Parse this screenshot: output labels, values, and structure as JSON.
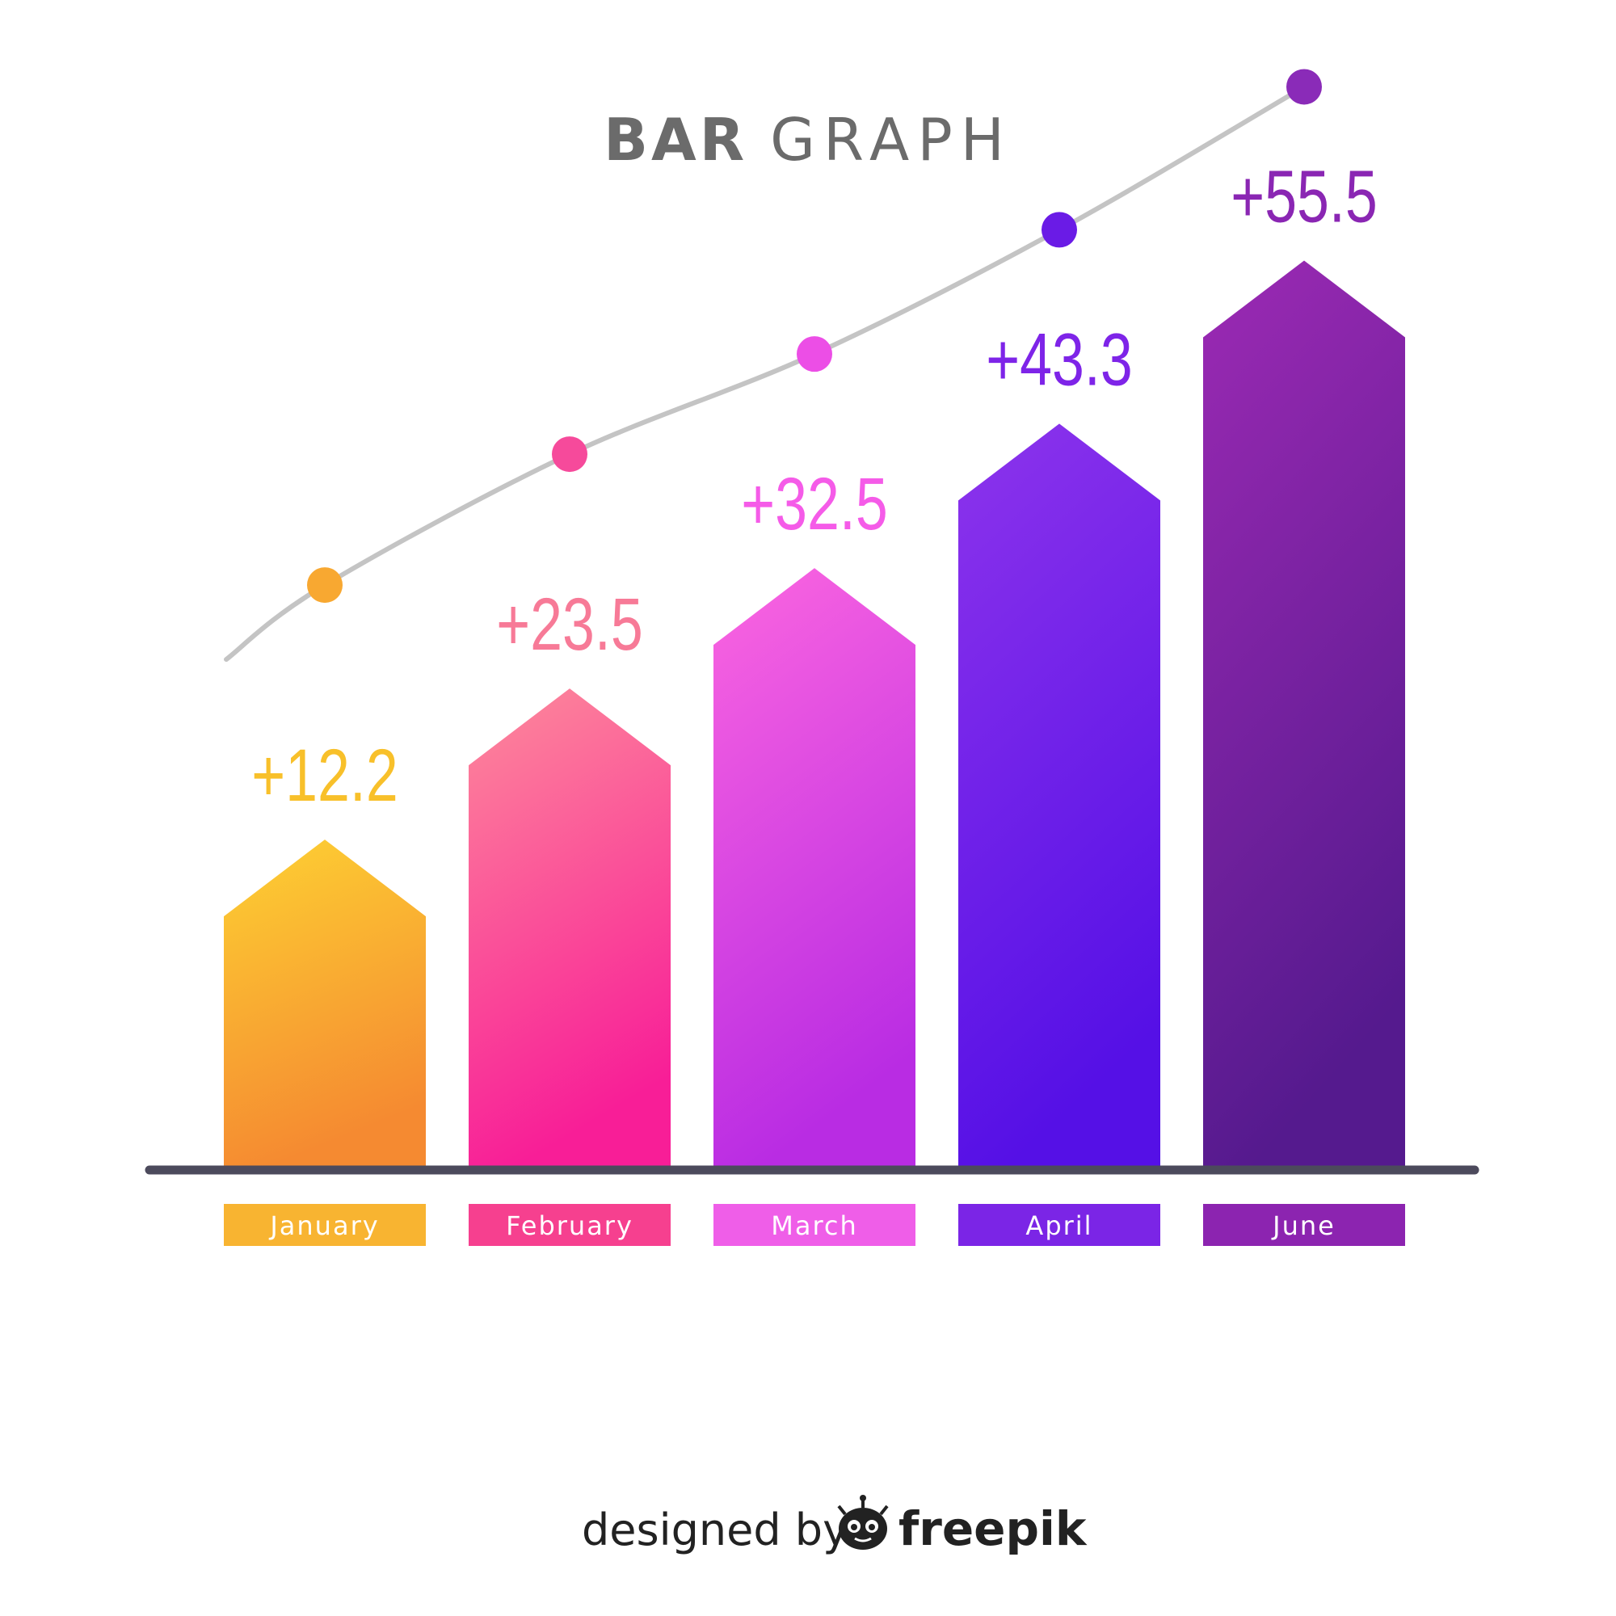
{
  "chart_data": {
    "type": "bar",
    "title_bold": "BAR",
    "title_light": "GRAPH",
    "categories": [
      "January",
      "February",
      "March",
      "April",
      "June"
    ],
    "values": [
      12.2,
      23.5,
      32.5,
      43.3,
      55.5
    ],
    "value_labels": [
      "+12.2",
      "+23.5",
      "+32.5",
      "+43.3",
      "+55.5"
    ],
    "trend_line": true,
    "grid": false,
    "legend": "none",
    "colors": {
      "bar_top": [
        "#fdd133",
        "#fd8a9b",
        "#fc66e0",
        "#8d34ec",
        "#9c2ab4"
      ],
      "bar_bottom": [
        "#f58a31",
        "#f81e97",
        "#b92ce3",
        "#5510e6",
        "#551a8e"
      ],
      "label_text": [
        "#f8c02a",
        "#f77a97",
        "#f55be8",
        "#7e24e8",
        "#8a26b3"
      ],
      "category_box": [
        "#f8b431",
        "#f6408f",
        "#ef5ee8",
        "#7b25e6",
        "#8c24b0"
      ],
      "dot": [
        "#f8a831",
        "#f64a9b",
        "#ec4ee6",
        "#6a1be6",
        "#8a2bb8"
      ],
      "trend_line": "#c4c4c4",
      "baseline": "#4c4a5c"
    }
  },
  "credit": {
    "prefix": "designed by",
    "brand": "freepik"
  }
}
